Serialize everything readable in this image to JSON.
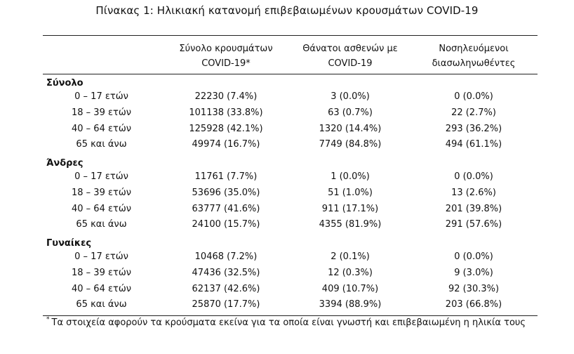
{
  "title": "Πίνακας 1: Ηλικιακή κατανομή επιβεβαιωμένων κρουσμάτων COVID-19",
  "headers": {
    "col1_line1": "Σύνολο κρουσμάτων",
    "col1_line2": "COVID-19*",
    "col2_line1": "Θάνατοι ασθενών με",
    "col2_line2": "COVID-19",
    "col3_line1": "Νοσηλευόμενοι",
    "col3_line2": "διασωληνωθέντες"
  },
  "groups": [
    {
      "label": "Σύνολο",
      "rows": [
        {
          "age": "0 – 17 ετών",
          "cases": "22230 (7.4%)",
          "deaths": "3 (0.0%)",
          "intubated": "0 (0.0%)"
        },
        {
          "age": "18 – 39 ετών",
          "cases": "101138 (33.8%)",
          "deaths": "63 (0.7%)",
          "intubated": "22 (2.7%)"
        },
        {
          "age": "40 – 64 ετών",
          "cases": "125928 (42.1%)",
          "deaths": "1320 (14.4%)",
          "intubated": "293 (36.2%)"
        },
        {
          "age": "65 και άνω",
          "cases": "49974 (16.7%)",
          "deaths": "7749 (84.8%)",
          "intubated": "494 (61.1%)"
        }
      ]
    },
    {
      "label": "Άνδρες",
      "rows": [
        {
          "age": "0 – 17 ετών",
          "cases": "11761 (7.7%)",
          "deaths": "1 (0.0%)",
          "intubated": "0 (0.0%)"
        },
        {
          "age": "18 – 39 ετών",
          "cases": "53696 (35.0%)",
          "deaths": "51 (1.0%)",
          "intubated": "13 (2.6%)"
        },
        {
          "age": "40 – 64 ετών",
          "cases": "63777 (41.6%)",
          "deaths": "911 (17.1%)",
          "intubated": "201 (39.8%)"
        },
        {
          "age": "65 και άνω",
          "cases": "24100 (15.7%)",
          "deaths": "4355 (81.9%)",
          "intubated": "291 (57.6%)"
        }
      ]
    },
    {
      "label": "Γυναίκες",
      "rows": [
        {
          "age": "0 – 17 ετών",
          "cases": "10468 (7.2%)",
          "deaths": "2 (0.1%)",
          "intubated": "0 (0.0%)"
        },
        {
          "age": "18 – 39 ετών",
          "cases": "47436 (32.5%)",
          "deaths": "12 (0.3%)",
          "intubated": "9 (3.0%)"
        },
        {
          "age": "40 – 64 ετών",
          "cases": "62137 (42.6%)",
          "deaths": "409 (10.7%)",
          "intubated": "92 (30.3%)"
        },
        {
          "age": "65 και άνω",
          "cases": "25870 (17.7%)",
          "deaths": "3394 (88.9%)",
          "intubated": "203 (66.8%)"
        }
      ]
    }
  ],
  "footnote": {
    "marker": "*",
    "text": "Τα στοιχεία αφορούν τα κρούσματα εκείνα για τα οποία είναι γνωστή και επιβεβαιωμένη η ηλικία τους"
  }
}
